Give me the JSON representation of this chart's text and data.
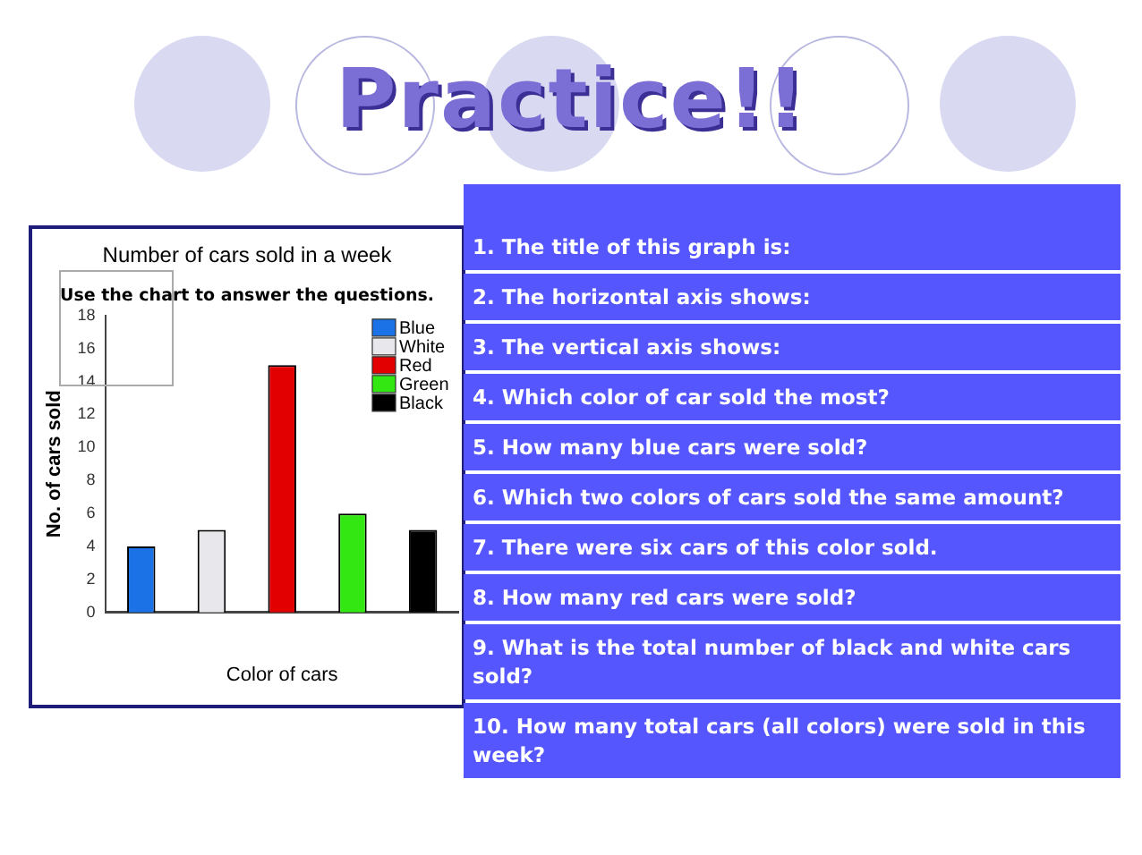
{
  "chart_data": {
    "type": "bar",
    "title": "Number of cars sold in a week",
    "xlabel": "Color of cars",
    "ylabel": "No. of cars sold",
    "categories": [
      null,
      null,
      null,
      null,
      null
    ],
    "series": [
      {
        "name": "Blue",
        "color": "#1a72e6",
        "values": [
          4,
          null,
          null,
          null,
          null
        ]
      },
      {
        "name": "White",
        "color": "#e8e8ec",
        "values": [
          null,
          5,
          null,
          null,
          null
        ]
      },
      {
        "name": "Red",
        "color": "#e20000",
        "values": [
          null,
          null,
          15,
          null,
          null
        ]
      },
      {
        "name": "Green",
        "color": "#33e812",
        "values": [
          null,
          null,
          null,
          6,
          null
        ]
      },
      {
        "name": "Black",
        "color": "#000000",
        "values": [
          null,
          null,
          null,
          null,
          5
        ]
      }
    ],
    "ylim": [
      0,
      18
    ],
    "yticks": [
      0,
      2,
      4,
      6,
      8,
      10,
      12,
      14,
      16,
      18
    ],
    "grid": false,
    "legend": "top right",
    "annotations": [
      "Practice!!",
      "Use the chart to answer the questions.",
      "1. The title of this graph is:",
      "2. The horizontal axis shows:",
      "3. The vertical axis shows:",
      "4. Which color of car sold the most?",
      "5. How many blue cars were sold?",
      "6. Which two colors of cars sold the same amount?",
      "7. There were six cars of this color sold.",
      "8. How many red cars were sold?",
      "9. What is the total number of black and white cars sold?",
      "10. How many total cars (all colors) were sold in this week?"
    ]
  }
}
